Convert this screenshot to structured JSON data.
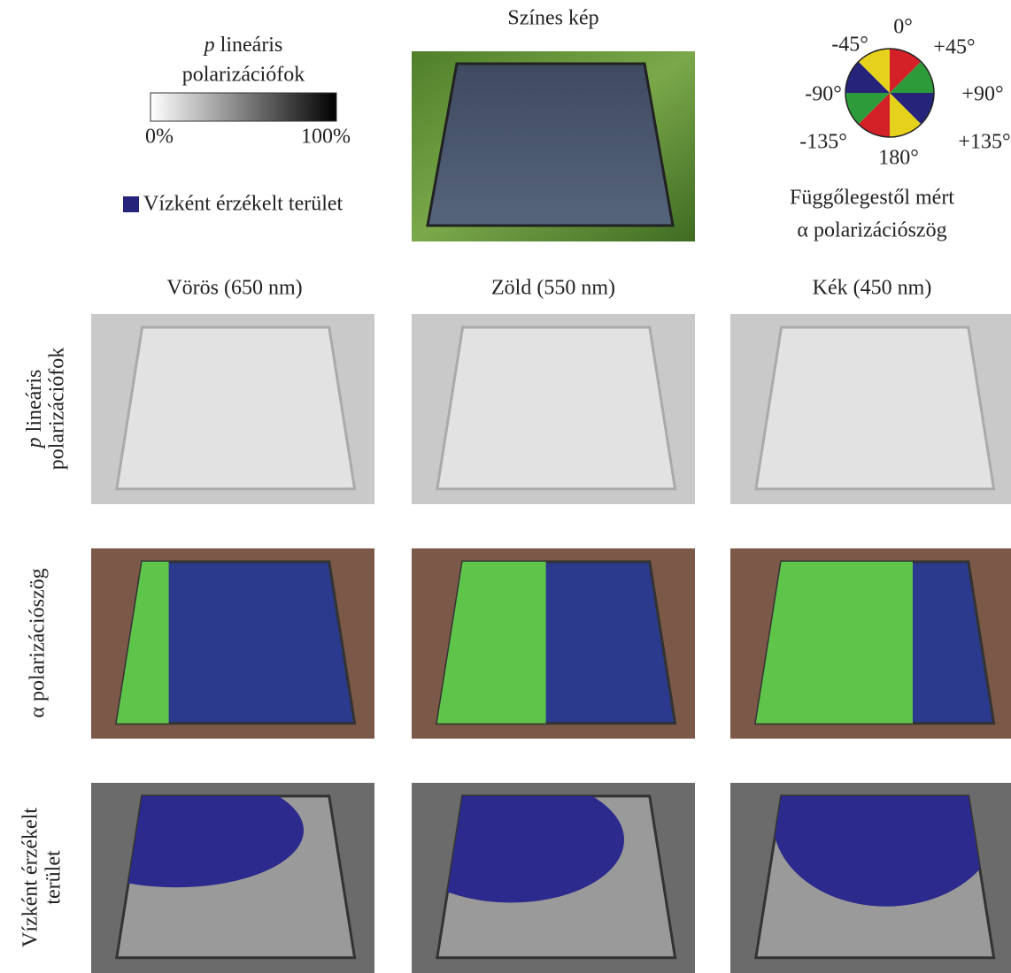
{
  "legend": {
    "title_symbol": "p",
    "title_line1": "lineáris",
    "title_line2": "polarizációfok",
    "scale_min": "0%",
    "scale_max": "100%",
    "water_label": "Vízként érzékelt terület"
  },
  "color_image": {
    "title": "Színes kép"
  },
  "angle_wheel": {
    "labels": [
      "0°",
      "+45°",
      "+90°",
      "+135°",
      "180°",
      "-135°",
      "-90°",
      "-45°"
    ],
    "caption_line1": "Függőlegestől mért",
    "caption_line2": "α polarizációszög"
  },
  "columns": [
    "Vörös (650 nm)",
    "Zöld (550 nm)",
    "Kék (450 nm)"
  ],
  "rows": [
    {
      "line1_symbol": "p",
      "line1": "lineáris",
      "line2": "polarizációfok"
    },
    {
      "line1": "α polarizációszög"
    },
    {
      "line1": "Vízként érzékelt",
      "line2": "terület"
    }
  ]
}
